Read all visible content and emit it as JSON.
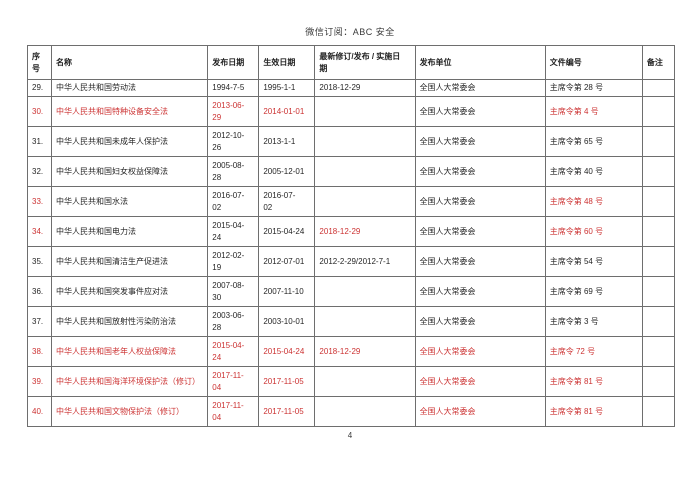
{
  "page": {
    "header_title": "微信订阅：ABC 安全",
    "page_number": "4",
    "accent_red": "#cc3333",
    "text_color": "#262626"
  },
  "table": {
    "columns": [
      {
        "key": "num",
        "label": "序\n号"
      },
      {
        "key": "name",
        "label": "名称"
      },
      {
        "key": "pub_date",
        "label": "发布日期"
      },
      {
        "key": "eff_date",
        "label": "生效日期"
      },
      {
        "key": "rev_date",
        "label": "最新修订/发布 / 实施日\n期"
      },
      {
        "key": "unit",
        "label": "发布单位"
      },
      {
        "key": "doc_no",
        "label": "文件编号"
      },
      {
        "key": "note",
        "label": "备注"
      }
    ],
    "rows": [
      {
        "cells": [
          {
            "t": "29."
          },
          {
            "t": "中华人民共和国劳动法"
          },
          {
            "t": "1994-7-5"
          },
          {
            "t": "1995-1-1"
          },
          {
            "t": "2018-12-29"
          },
          {
            "t": "全国人大常委会"
          },
          {
            "t": "主席令第 28 号",
            "bold": true
          },
          {
            "t": ""
          }
        ]
      },
      {
        "cells": [
          {
            "t": "30.",
            "red": true
          },
          {
            "t": "中华人民共和国特种设备安全法",
            "red": true
          },
          {
            "t": "2013-06-\n29",
            "red": true
          },
          {
            "t": "2014-01-01",
            "red": true
          },
          {
            "t": ""
          },
          {
            "t": "全国人大常委会"
          },
          {
            "t": "主席令第 4 号",
            "red": true
          },
          {
            "t": ""
          }
        ]
      },
      {
        "cells": [
          {
            "t": "31."
          },
          {
            "t": "中华人民共和国未成年人保护法"
          },
          {
            "t": "2012-10-\n26"
          },
          {
            "t": "2013-1-1"
          },
          {
            "t": ""
          },
          {
            "t": "全国人大常委会"
          },
          {
            "t": "主席令第 65 号"
          },
          {
            "t": ""
          }
        ]
      },
      {
        "cells": [
          {
            "t": "32."
          },
          {
            "t": "中华人民共和国妇女权益保障法"
          },
          {
            "t": "2005-08-\n28"
          },
          {
            "t": "2005-12-01"
          },
          {
            "t": ""
          },
          {
            "t": "全国人大常委会"
          },
          {
            "t": "主席令第 40 号"
          },
          {
            "t": ""
          }
        ]
      },
      {
        "cells": [
          {
            "t": "33.",
            "red": true
          },
          {
            "t": "中华人民共和国水法"
          },
          {
            "t": "2016-07-\n02"
          },
          {
            "t": "2016-07-\n02",
            "bold": true
          },
          {
            "t": ""
          },
          {
            "t": "全国人大常委会"
          },
          {
            "t": "主席令第 48 号",
            "red": true,
            "bold": true
          },
          {
            "t": ""
          }
        ]
      },
      {
        "cells": [
          {
            "t": "34.",
            "red": true
          },
          {
            "t": "中华人民共和国电力法"
          },
          {
            "t": "2015-04-\n24"
          },
          {
            "t": "2015-04-24"
          },
          {
            "t": "2018-12-29",
            "red": true
          },
          {
            "t": "全国人大常委会"
          },
          {
            "t": "主席令第 60 号",
            "red": true
          },
          {
            "t": ""
          }
        ]
      },
      {
        "cells": [
          {
            "t": "35."
          },
          {
            "t": "中华人民共和国清洁生产促进法"
          },
          {
            "t": "2012-02-\n19"
          },
          {
            "t": "2012-07-01"
          },
          {
            "t": "2012-2-29/2012-7-1",
            "bold": true
          },
          {
            "t": "全国人大常委会"
          },
          {
            "t": "主席令第 54 号",
            "bold": true
          },
          {
            "t": ""
          }
        ]
      },
      {
        "cells": [
          {
            "t": "36."
          },
          {
            "t": "中华人民共和国突发事件应对法"
          },
          {
            "t": "2007-08-\n30"
          },
          {
            "t": "2007-11-10"
          },
          {
            "t": ""
          },
          {
            "t": "全国人大常委会"
          },
          {
            "t": "主席令第 69 号"
          },
          {
            "t": ""
          }
        ]
      },
      {
        "cells": [
          {
            "t": "37."
          },
          {
            "t": "中华人民共和国放射性污染防治法"
          },
          {
            "t": "2003-06-\n28"
          },
          {
            "t": "2003-10-01"
          },
          {
            "t": ""
          },
          {
            "t": "全国人大常委会"
          },
          {
            "t": "主席令第 3 号"
          },
          {
            "t": ""
          }
        ]
      },
      {
        "cells": [
          {
            "t": "38.",
            "red": true
          },
          {
            "t": "中华人民共和国老年人权益保障法",
            "red": true
          },
          {
            "t": "2015-04-\n24",
            "red": true
          },
          {
            "t": "2015-04-24",
            "red": true
          },
          {
            "t": "2018-12-29",
            "red": true
          },
          {
            "t": "全国人大常委会",
            "red": true
          },
          {
            "t": "主席令 72 号",
            "red": true
          },
          {
            "t": ""
          }
        ]
      },
      {
        "cells": [
          {
            "t": "39.",
            "red": true
          },
          {
            "t": "中华人民共和国海洋环境保护法（修订）",
            "red": true
          },
          {
            "t": "2017-11-\n04",
            "red": true
          },
          {
            "t": "2017-11-05",
            "red": true
          },
          {
            "t": ""
          },
          {
            "t": "全国人大常委会",
            "red": true
          },
          {
            "t": "主席令第 81 号",
            "red": true
          },
          {
            "t": ""
          }
        ]
      },
      {
        "cells": [
          {
            "t": "40.",
            "red": true
          },
          {
            "t": "中华人民共和国文物保护法（修订）",
            "red": true
          },
          {
            "t": "2017-11-\n04",
            "red": true
          },
          {
            "t": "2017-11-05",
            "red": true
          },
          {
            "t": ""
          },
          {
            "t": "全国人大常委会",
            "red": true
          },
          {
            "t": "主席令第 81 号",
            "red": true
          },
          {
            "t": ""
          }
        ]
      }
    ]
  }
}
